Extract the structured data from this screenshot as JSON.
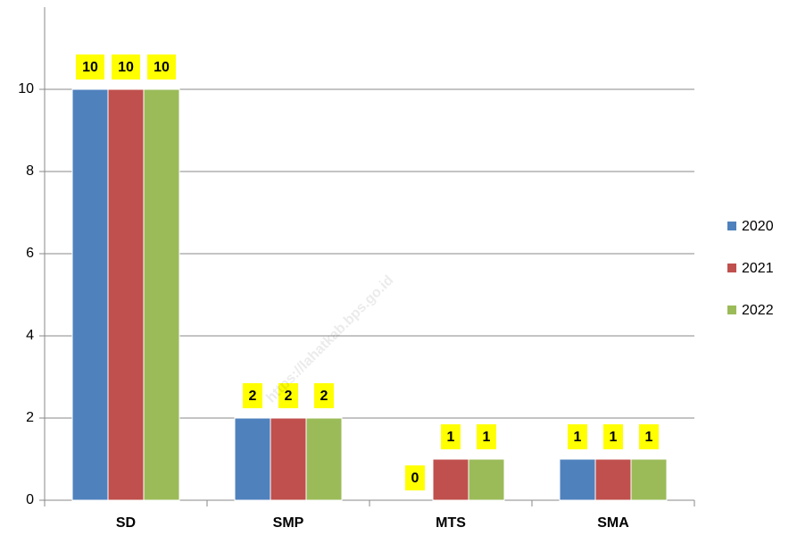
{
  "chart_data": {
    "type": "bar",
    "categories": [
      "SD",
      "SMP",
      "MTS",
      "SMA"
    ],
    "series": [
      {
        "name": "2020",
        "color": "#4f81bd",
        "values": [
          10,
          2,
          0,
          1
        ]
      },
      {
        "name": "2021",
        "color": "#c0504d",
        "values": [
          10,
          2,
          1,
          1
        ]
      },
      {
        "name": "2022",
        "color": "#9bbb59",
        "values": [
          10,
          2,
          1,
          1
        ]
      }
    ],
    "ylim": [
      0,
      12
    ],
    "yticks": [
      0,
      2,
      4,
      6,
      8,
      10
    ],
    "grid": true,
    "legend": "right",
    "watermark": "https://lahatkab.bps.go.id"
  }
}
